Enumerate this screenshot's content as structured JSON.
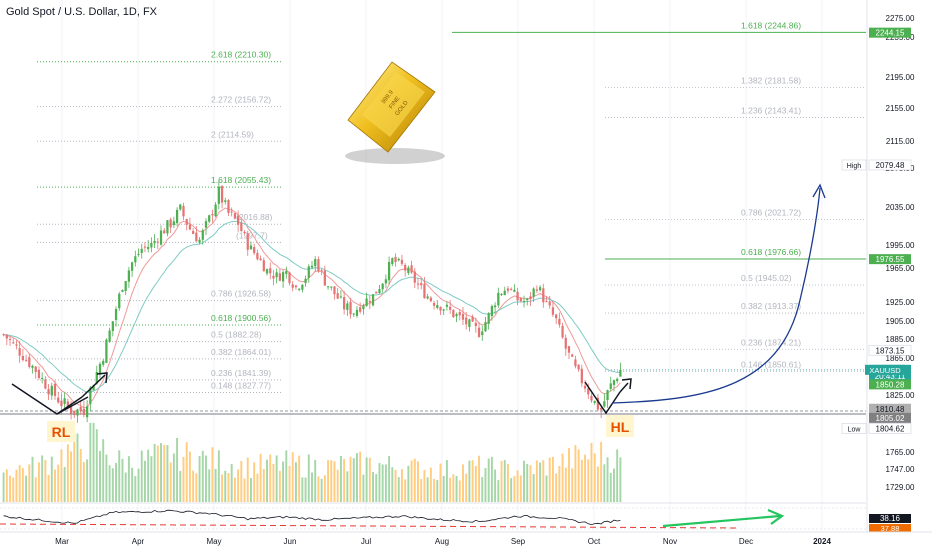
{
  "symbol": {
    "title": "Gold Spot / U.S. Dollar, 1D, FX"
  },
  "colors": {
    "up": "#26a69a",
    "up_candle": "#4caf50",
    "down": "#ef5350",
    "down_candle": "#e57373",
    "fib_green": "#4caf50",
    "fib_grey": "#b2b5be",
    "ema_fast": "#ef9a9a",
    "ema_slow": "#80cbc4",
    "arrow_blue": "#1a3a8f",
    "arrow_green": "#22c55e",
    "vol_up": "#a5d6a7",
    "vol_down": "#ffcc80"
  },
  "chart_data": {
    "type": "candlestick",
    "symbol_badge": "XAUUSD",
    "ylim": [
      1700,
      2290
    ],
    "y_ticks": [
      "2275.00",
      "2235.00",
      "2195.00",
      "2155.00",
      "2115.00",
      "2075.00",
      "2035.00",
      "1995.00",
      "1965.00",
      "1925.00",
      "1905.00",
      "1885.00",
      "1865.00",
      "1825.00",
      "1765.00",
      "1747.00",
      "1729.00"
    ],
    "x_ticks": [
      "Mar",
      "Apr",
      "May",
      "Jun",
      "Jul",
      "Aug",
      "Sep",
      "Oct",
      "Nov",
      "Dec",
      "2024"
    ],
    "price_path": [
      [
        0,
        1890
      ],
      [
        5,
        1872
      ],
      [
        10,
        1852
      ],
      [
        14,
        1832
      ],
      [
        18,
        1818
      ],
      [
        22,
        1810
      ],
      [
        25,
        1812
      ],
      [
        28,
        1840
      ],
      [
        31,
        1868
      ],
      [
        34,
        1905
      ],
      [
        37,
        1945
      ],
      [
        40,
        1972
      ],
      [
        43,
        1990
      ],
      [
        46,
        1995
      ],
      [
        49,
        2008
      ],
      [
        52,
        2018
      ],
      [
        55,
        2032
      ],
      [
        58,
        2012
      ],
      [
        61,
        2000
      ],
      [
        64,
        2022
      ],
      [
        67,
        2050
      ],
      [
        70,
        2028
      ],
      [
        73,
        2018
      ],
      [
        76,
        1995
      ],
      [
        79,
        1980
      ],
      [
        82,
        1962
      ],
      [
        85,
        1955
      ],
      [
        88,
        1960
      ],
      [
        91,
        1942
      ],
      [
        94,
        1955
      ],
      [
        97,
        1975
      ],
      [
        100,
        1950
      ],
      [
        103,
        1935
      ],
      [
        106,
        1920
      ],
      [
        109,
        1915
      ],
      [
        112,
        1925
      ],
      [
        115,
        1932
      ],
      [
        118,
        1950
      ],
      [
        121,
        1975
      ],
      [
        124,
        1968
      ],
      [
        127,
        1955
      ],
      [
        130,
        1940
      ],
      [
        133,
        1928
      ],
      [
        136,
        1922
      ],
      [
        139,
        1915
      ],
      [
        142,
        1908
      ],
      [
        145,
        1900
      ],
      [
        148,
        1893
      ],
      [
        151,
        1910
      ],
      [
        154,
        1935
      ],
      [
        157,
        1942
      ],
      [
        160,
        1928
      ],
      [
        163,
        1925
      ],
      [
        166,
        1945
      ],
      [
        169,
        1922
      ],
      [
        172,
        1905
      ],
      [
        175,
        1875
      ],
      [
        178,
        1852
      ],
      [
        181,
        1835
      ],
      [
        184,
        1818
      ],
      [
        186,
        1812
      ],
      [
        189,
        1835
      ],
      [
        192,
        1852
      ]
    ],
    "volume_path": [
      [
        0,
        0.45
      ],
      [
        10,
        0.5
      ],
      [
        22,
        0.75
      ],
      [
        28,
        0.9
      ],
      [
        34,
        0.6
      ],
      [
        40,
        0.55
      ],
      [
        52,
        0.7
      ],
      [
        64,
        0.6
      ],
      [
        76,
        0.5
      ],
      [
        88,
        0.55
      ],
      [
        100,
        0.5
      ],
      [
        112,
        0.55
      ],
      [
        124,
        0.5
      ],
      [
        136,
        0.45
      ],
      [
        148,
        0.5
      ],
      [
        160,
        0.45
      ],
      [
        172,
        0.55
      ],
      [
        184,
        0.7
      ],
      [
        192,
        0.6
      ]
    ],
    "oscillator_path": [
      [
        0,
        0.55
      ],
      [
        10,
        0.35
      ],
      [
        22,
        0.15
      ],
      [
        34,
        0.75
      ],
      [
        52,
        0.85
      ],
      [
        64,
        0.7
      ],
      [
        76,
        0.4
      ],
      [
        88,
        0.5
      ],
      [
        100,
        0.35
      ],
      [
        112,
        0.45
      ],
      [
        124,
        0.55
      ],
      [
        136,
        0.35
      ],
      [
        148,
        0.25
      ],
      [
        160,
        0.55
      ],
      [
        172,
        0.45
      ],
      [
        184,
        0.1
      ],
      [
        192,
        0.35
      ]
    ],
    "fib_left": [
      {
        "label": "2.618 (2210.30)",
        "price": 2210.3,
        "color": "green"
      },
      {
        "label": "2.272 (2156.72)",
        "price": 2156.72,
        "color": "grey"
      },
      {
        "label": "2 (2114.59)",
        "price": 2114.59,
        "color": "grey"
      },
      {
        "label": "1.618 (2055.43)",
        "price": 2055.43,
        "color": "green"
      },
      {
        "label": "(2016.88)",
        "price": 2016.88,
        "color": "grey"
      },
      {
        "label": "(1997.7)",
        "price": 1997.7,
        "color": "grey"
      },
      {
        "label": "0.786 (1926.58)",
        "price": 1926.58,
        "color": "grey"
      },
      {
        "label": "0.618 (1900.56)",
        "price": 1900.56,
        "color": "green"
      },
      {
        "label": "0.5 (1882.28)",
        "price": 1882.28,
        "color": "grey"
      },
      {
        "label": "0.382 (1864.01)",
        "price": 1864.01,
        "color": "grey"
      },
      {
        "label": "0.236 (1841.39)",
        "price": 1841.39,
        "color": "grey"
      },
      {
        "label": "0.148 (1827.77)",
        "price": 1827.77,
        "color": "grey"
      }
    ],
    "fib_right": [
      {
        "label": "1.618 (2244.86)",
        "price": 2244.86,
        "color": "green"
      },
      {
        "label": "1.382 (2181.58)",
        "price": 2181.58,
        "color": "grey"
      },
      {
        "label": "1.236 (2143.41)",
        "price": 2143.41,
        "color": "grey"
      },
      {
        "label": "0.786 (2021.72)",
        "price": 2021.72,
        "color": "grey"
      },
      {
        "label": "0.618 (1976.66)",
        "price": 1976.66,
        "color": "green"
      },
      {
        "label": "0.5 (1945.02)",
        "price": 1945.02,
        "color": "grey"
      },
      {
        "label": "0.382 (1913.37)",
        "price": 1913.37,
        "color": "grey"
      },
      {
        "label": "0.236 (1874.21)",
        "price": 1874.21,
        "color": "grey"
      },
      {
        "label": "0.146 (1850.61)",
        "price": 1850.61,
        "color": "grey"
      }
    ],
    "price_labels": [
      {
        "text": "2244.15",
        "price": 2244.15,
        "bg": "#4caf50",
        "fg": "#ffffff"
      },
      {
        "text": "2079.48",
        "price": 2079.48,
        "bg": "#ffffff",
        "fg": "#131722",
        "tag": "High"
      },
      {
        "text": "1976.55",
        "price": 1976.55,
        "bg": "#4caf50",
        "fg": "#ffffff"
      },
      {
        "text": "1873.15",
        "price": 1873.15,
        "bg": "#ffffff",
        "fg": "#131722"
      },
      {
        "text": "1852.21",
        "price": 1852.21,
        "bg": "#26a69a",
        "fg": "#ffffff"
      },
      {
        "text": "20:43:11",
        "price": 1845.5,
        "bg": "#26a69a",
        "fg": "#ffffff"
      },
      {
        "text": "1850.28",
        "price": 1836.5,
        "bg": "#4caf50",
        "fg": "#ffffff"
      },
      {
        "text": "1810.48",
        "price": 1812.5,
        "bg": "#b0b0b0",
        "fg": "#131722"
      },
      {
        "text": "1805.02",
        "price": 1804.0,
        "bg": "#808080",
        "fg": "#ffffff"
      },
      {
        "text": "1804.62",
        "price": 1792.0,
        "bg": "#ffffff",
        "fg": "#131722",
        "tag": "Low"
      }
    ],
    "oscillator_labels": [
      "38.16",
      "37.88"
    ],
    "annotations": {
      "left": "RL",
      "right": "HL"
    },
    "image_text": [
      "999.9",
      "FINE",
      "GOLD"
    ]
  }
}
